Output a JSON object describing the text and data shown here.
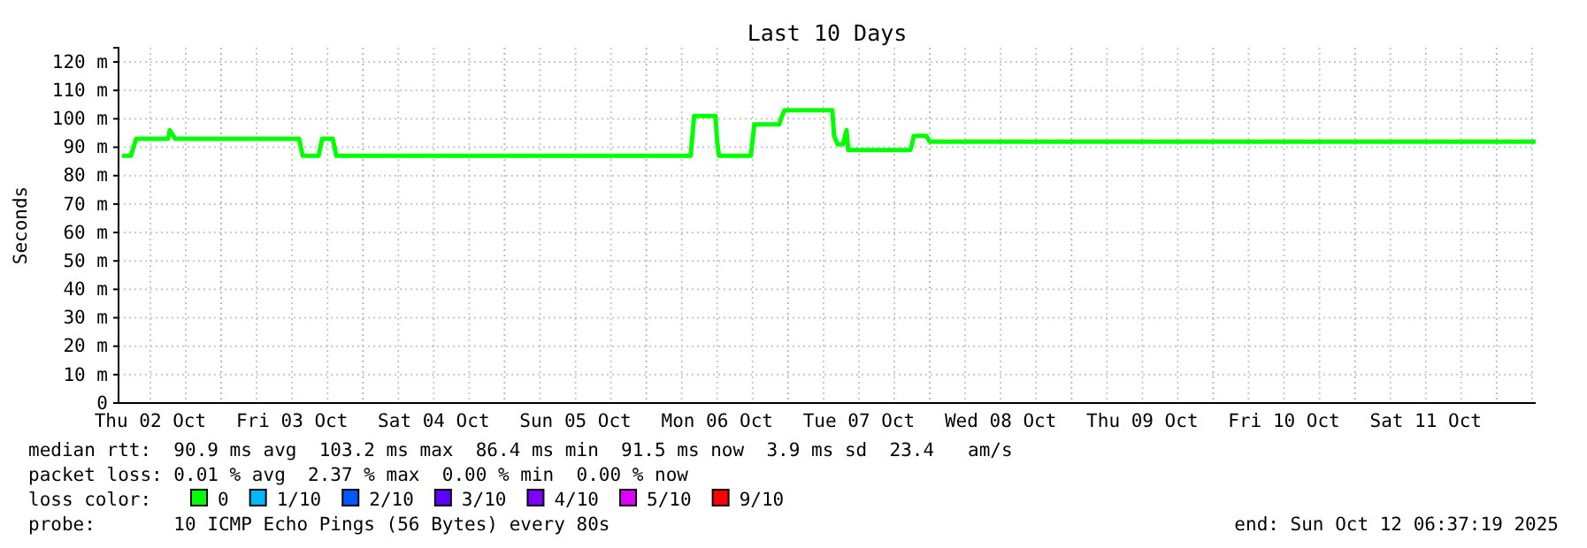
{
  "chart_data": {
    "type": "line",
    "title": "Last 10 Days",
    "ylabel": "Seconds",
    "xlim": [
      "2025-10-02T06:37",
      "2025-10-12T06:37"
    ],
    "xticks": [
      {
        "value": "2025-10-02T12:00",
        "label": "Thu 02 Oct"
      },
      {
        "value": "2025-10-03T12:00",
        "label": "Fri 03 Oct"
      },
      {
        "value": "2025-10-04T12:00",
        "label": "Sat 04 Oct"
      },
      {
        "value": "2025-10-05T12:00",
        "label": "Sun 05 Oct"
      },
      {
        "value": "2025-10-06T12:00",
        "label": "Mon 06 Oct"
      },
      {
        "value": "2025-10-07T12:00",
        "label": "Tue 07 Oct"
      },
      {
        "value": "2025-10-08T12:00",
        "label": "Wed 08 Oct"
      },
      {
        "value": "2025-10-09T12:00",
        "label": "Thu 09 Oct"
      },
      {
        "value": "2025-10-10T12:00",
        "label": "Fri 10 Oct"
      },
      {
        "value": "2025-10-11T12:00",
        "label": "Sat 11 Oct"
      }
    ],
    "ylim": [
      0,
      125
    ],
    "yticks": [
      0,
      {
        "value": 10,
        "label": "10 m"
      },
      {
        "value": 20,
        "label": "20 m"
      },
      {
        "value": 30,
        "label": "30 m"
      },
      {
        "value": 40,
        "label": "40 m"
      },
      {
        "value": 50,
        "label": "50 m"
      },
      {
        "value": 60,
        "label": "60 m"
      },
      {
        "value": 70,
        "label": "70 m"
      },
      {
        "value": 80,
        "label": "80 m"
      },
      {
        "value": 90,
        "label": "90 m"
      },
      {
        "value": 100,
        "label": "100 m"
      },
      {
        "value": 110,
        "label": "110 m"
      },
      {
        "value": 120,
        "label": "120 m"
      }
    ],
    "grid": true,
    "legend": "bottom",
    "legend_title": "loss color:",
    "series": [
      {
        "name": "0",
        "color": "#00ff00",
        "x": [
          "2025-10-02T07:12",
          "2025-10-02T08:42",
          "2025-10-02T09:36",
          "2025-10-02T15:00",
          "2025-10-02T15:18",
          "2025-10-02T16:12",
          "2025-10-03T13:12",
          "2025-10-03T13:48",
          "2025-10-03T16:30",
          "2025-10-03T17:06",
          "2025-10-03T18:54",
          "2025-10-03T19:30",
          "2025-10-06T07:30",
          "2025-10-06T08:06",
          "2025-10-06T11:42",
          "2025-10-06T12:00",
          "2025-10-06T12:18",
          "2025-10-06T17:42",
          "2025-10-06T18:18",
          "2025-10-06T22:30",
          "2025-10-06T22:48",
          "2025-10-06T23:24",
          "2025-10-07T07:30",
          "2025-10-07T07:48",
          "2025-10-07T08:24",
          "2025-10-07T09:18",
          "2025-10-07T09:54",
          "2025-10-07T10:12",
          "2025-10-07T20:42",
          "2025-10-07T21:00",
          "2025-10-07T21:18",
          "2025-10-07T23:24",
          "2025-10-08T00:00",
          "2025-10-12T06:36"
        ],
        "values": [
          87,
          87,
          93,
          93,
          96,
          93,
          93,
          87,
          87,
          93,
          93,
          87,
          87,
          101,
          101,
          92,
          87,
          87,
          98,
          98,
          100,
          103,
          103,
          94,
          91,
          91,
          96,
          89,
          89,
          91,
          94,
          94,
          92,
          92
        ]
      },
      {
        "name": "1/10",
        "color": "#00b8ff"
      },
      {
        "name": "2/10",
        "color": "#0059ff"
      },
      {
        "name": "3/10",
        "color": "#5e00ff"
      },
      {
        "name": "4/10",
        "color": "#7e00ff"
      },
      {
        "name": "5/10",
        "color": "#dd00ff"
      },
      {
        "name": "9/10",
        "color": "#ff0000"
      }
    ],
    "annotations": [
      "median rtt:  90.9 ms avg  103.2 ms max  86.4 ms min  91.5 ms now  3.9 ms sd  23.4   am/s",
      "packet loss: 0.01 % avg  2.37 % max  0.00 % min  0.00 % now",
      "probe:       10 ICMP Echo Pings (56 Bytes) every 80s",
      "end: Sun Oct 12 06:37:19 2025"
    ]
  }
}
